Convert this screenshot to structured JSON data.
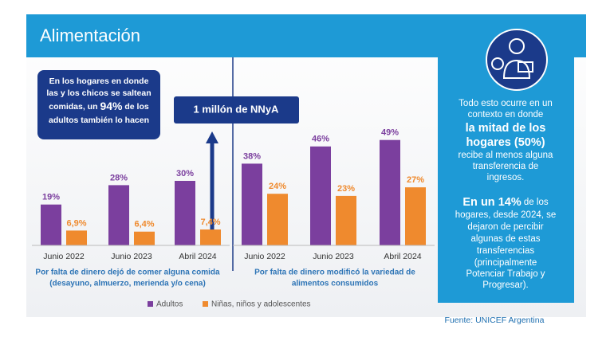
{
  "header": {
    "title": "Alimentación"
  },
  "callout": {
    "lines": [
      [
        {
          "text": "En los hogares en donde",
          "emphasis": false
        }
      ],
      [
        {
          "text": "las y los chicos se saltean",
          "emphasis": false
        }
      ],
      [
        {
          "text": "comidas, un ",
          "emphasis": false
        },
        {
          "text": "94%",
          "emphasis": true
        },
        {
          "text": " de los",
          "emphasis": false
        }
      ],
      [
        {
          "text": "adultos también lo hacen",
          "emphasis": false
        }
      ]
    ]
  },
  "badge": "1 millón de NNyA",
  "chart_data": [
    {
      "type": "bar",
      "categories": [
        "Junio 2022",
        "Junio 2023",
        "Abril 2024"
      ],
      "caption": [
        "Por falta de dinero dejó de comer alguna comida",
        "(desayuno, almuerzo, merienda y/o cena)"
      ],
      "series": [
        {
          "name": "Adultos",
          "color": "#7b3f9e",
          "values": [
            19,
            28,
            30
          ],
          "value_labels": [
            "19%",
            "28%",
            "30%"
          ]
        },
        {
          "name": "Niñas, niños y adolescentes",
          "color": "#ef8a2e",
          "values": [
            6.9,
            6.4,
            7.4
          ],
          "value_labels": [
            "6,9%",
            "6,4%",
            "7,4%"
          ]
        }
      ]
    },
    {
      "type": "bar",
      "categories": [
        "Junio 2022",
        "Junio 2023",
        "Abril 2024"
      ],
      "caption": [
        "Por falta de dinero modificó la variedad de",
        "alimentos consumidos"
      ],
      "series": [
        {
          "color": "#7b3f9e",
          "values": [
            38,
            46,
            49
          ],
          "value_labels": [
            "38%",
            "46%",
            "49%"
          ]
        },
        {
          "color": "#ef8a2e",
          "values": [
            24,
            23,
            27
          ],
          "value_labels": [
            "24%",
            "23%",
            "27%"
          ]
        }
      ]
    }
  ],
  "panel": {
    "lines": [
      [
        {
          "text": "Todo esto ocurre en un",
          "emphasis": false
        }
      ],
      [
        {
          "text": "contexto en donde",
          "emphasis": false
        }
      ],
      [
        {
          "text": "la mitad de los",
          "emphasis": true
        }
      ],
      [
        {
          "text": "hogares (50%)",
          "emphasis": true
        }
      ],
      [
        {
          "text": "recibe al menos alguna",
          "emphasis": false
        }
      ],
      [
        {
          "text": "transferencia de",
          "emphasis": false
        }
      ],
      [
        {
          "text": "ingresos.",
          "emphasis": false
        }
      ],
      [
        {
          "text": "En un 14%",
          "emphasis": true
        },
        {
          "text": " de los",
          "emphasis": false
        }
      ],
      [
        {
          "text": "hogares, desde 2024, se",
          "emphasis": false
        }
      ],
      [
        {
          "text": "dejaron de percibir",
          "emphasis": false
        }
      ],
      [
        {
          "text": "algunas de estas",
          "emphasis": false
        }
      ],
      [
        {
          "text": "transferencias",
          "emphasis": false
        }
      ],
      [
        {
          "text": "(principalmente",
          "emphasis": false
        }
      ],
      [
        {
          "text": "Potenciar Trabajo y",
          "emphasis": false
        }
      ],
      [
        {
          "text": "Progresar).",
          "emphasis": false
        }
      ]
    ]
  },
  "source": "Fuente: UNICEF Argentina"
}
